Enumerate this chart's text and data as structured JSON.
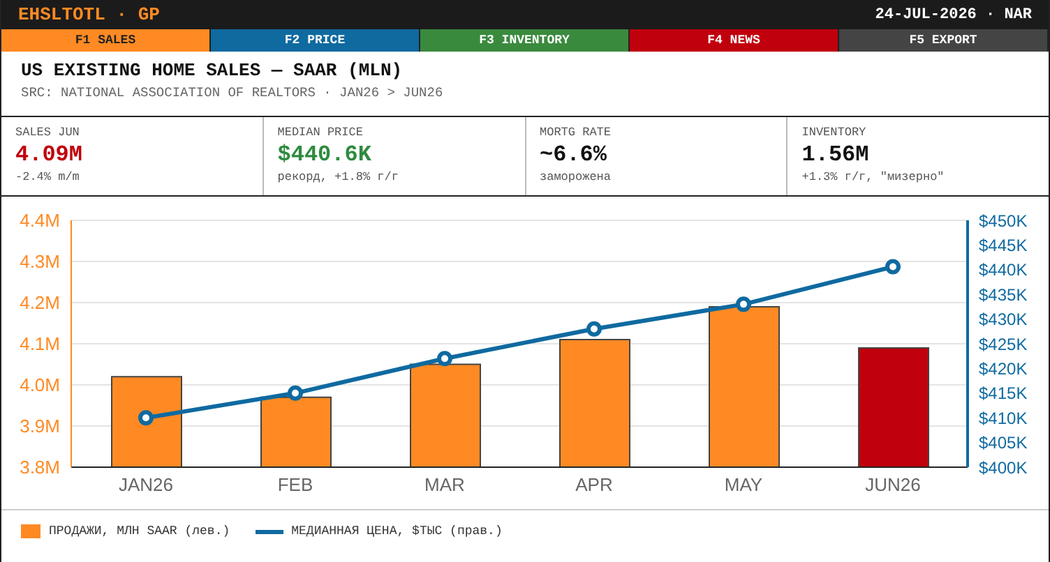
{
  "chart_data": {
    "type": "bar",
    "title": "US EXISTING HOME SALES — SAAR (MLN)",
    "subtitle": "SRC: NATIONAL ASSOCIATION OF REALTORS · JAN26 > JUN26",
    "categories": [
      "JAN26",
      "FEB",
      "MAR",
      "APR",
      "MAY",
      "JUN26"
    ],
    "series": [
      {
        "name": "ПРОДАЖИ, МЛН SAAR (лев.)",
        "color": "#ff8a24",
        "colors": [
          "#ff8a24",
          "#ff8a24",
          "#ff8a24",
          "#ff8a24",
          "#ff8a24",
          "#c0000c"
        ],
        "values": [
          4.02,
          3.97,
          4.05,
          4.11,
          4.19,
          4.09
        ]
      },
      {
        "name": "МЕДИАННАЯ ЦЕНА, $ТЫС (прав.)",
        "type": "line",
        "axis": "y2",
        "color": "#0f6aa0",
        "values": [
          410,
          415,
          422,
          428,
          433,
          440.6
        ]
      }
    ],
    "ylim": [
      3.8,
      4.4
    ],
    "yticks": [
      {
        "value": 3.8,
        "label": "3.8M"
      },
      {
        "value": 3.9,
        "label": "3.9M"
      },
      {
        "value": 4.0,
        "label": "4.0M"
      },
      {
        "value": 4.1,
        "label": "4.1M"
      },
      {
        "value": 4.2,
        "label": "4.2M"
      },
      {
        "value": 4.3,
        "label": "4.3M"
      },
      {
        "value": 4.4,
        "label": "4.4M"
      }
    ],
    "y2lim": [
      400,
      450
    ],
    "y2ticks": [
      {
        "value": 400,
        "label": "$400K"
      },
      {
        "value": 405,
        "label": "$405K"
      },
      {
        "value": 410,
        "label": "$410K"
      },
      {
        "value": 415,
        "label": "$415K"
      },
      {
        "value": 420,
        "label": "$420K"
      },
      {
        "value": 425,
        "label": "$425K"
      },
      {
        "value": 430,
        "label": "$430K"
      },
      {
        "value": 435,
        "label": "$435K"
      },
      {
        "value": 440,
        "label": "$440K"
      },
      {
        "value": 445,
        "label": "$445K"
      },
      {
        "value": 450,
        "label": "$450K"
      }
    ],
    "grid": "y",
    "legend": "bottom",
    "marker": "circle",
    "line_style": "solid",
    "annotations": [
      "EHSLTOTL · GP",
      "24-JUL-2026 · NAR",
      "F1 SALES",
      "F2 PRICE",
      "F3 INVENTORY",
      "F4 NEWS",
      "F5 EXPORT",
      "SALES JUN",
      "4.09M",
      "-2.4% m/m",
      "MEDIAN PRICE",
      "$440.6K",
      "рекорд, +1.8% г/г",
      "MORTG RATE",
      "~6.6%",
      "заморожена",
      "INVENTORY",
      "1.56M",
      "+1.3% г/г, \"мизерно\""
    ]
  }
}
